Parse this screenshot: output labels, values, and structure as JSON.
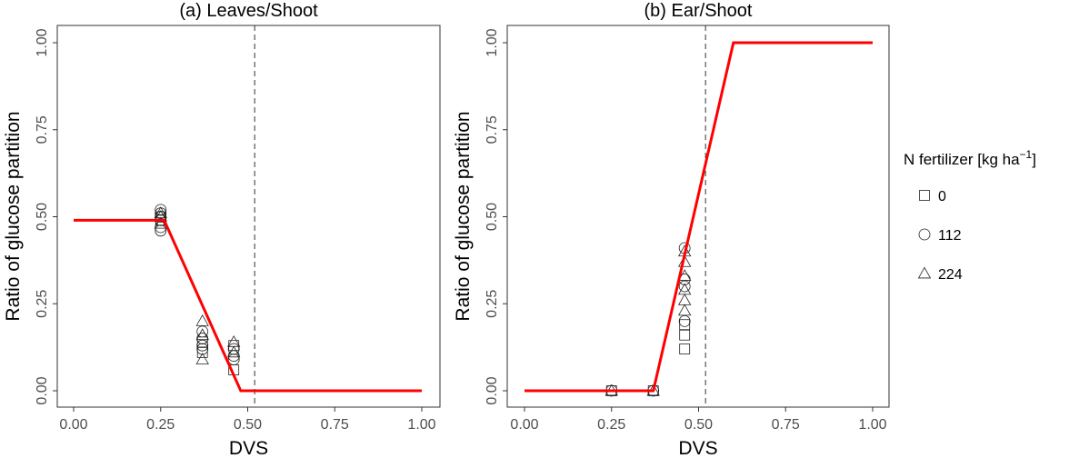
{
  "legend": {
    "title": "N fertilizer [kg ha",
    "title_sup": "−1",
    "title_end": "]",
    "items": [
      {
        "label": "0",
        "shape": "square"
      },
      {
        "label": "112",
        "shape": "circle"
      },
      {
        "label": "224",
        "shape": "triangle"
      }
    ]
  },
  "chart_data": [
    {
      "type": "scatter",
      "title": "(a) Leaves/Shoot",
      "xlabel": "DVS",
      "ylabel": "Ratio of glucose partition",
      "xlim": [
        0,
        1
      ],
      "ylim": [
        0,
        1
      ],
      "xticks": [
        "0.00",
        "0.25",
        "0.50",
        "0.75",
        "1.00"
      ],
      "yticks": [
        "0.00",
        "0.25",
        "0.50",
        "0.75",
        "1.00"
      ],
      "grid": false,
      "line_color": "#ff0000",
      "fit_line": {
        "x": [
          0,
          0.26,
          0.48,
          1.0
        ],
        "y": [
          0.49,
          0.49,
          0,
          0
        ]
      },
      "vline": 0.52,
      "series": [
        {
          "name": "0",
          "shape": "square",
          "points": [
            [
              0.25,
              0.5
            ],
            [
              0.25,
              0.49
            ],
            [
              0.37,
              0.14
            ],
            [
              0.37,
              0.11
            ],
            [
              0.46,
              0.06
            ],
            [
              0.46,
              0.13
            ]
          ]
        },
        {
          "name": "112",
          "shape": "circle",
          "points": [
            [
              0.25,
              0.52
            ],
            [
              0.25,
              0.51
            ],
            [
              0.25,
              0.5
            ],
            [
              0.25,
              0.49
            ],
            [
              0.25,
              0.47
            ],
            [
              0.25,
              0.46
            ],
            [
              0.37,
              0.17
            ],
            [
              0.37,
              0.15
            ],
            [
              0.37,
              0.13
            ],
            [
              0.37,
              0.12
            ],
            [
              0.46,
              0.12
            ],
            [
              0.46,
              0.1
            ],
            [
              0.46,
              0.09
            ]
          ]
        },
        {
          "name": "224",
          "shape": "triangle",
          "points": [
            [
              0.25,
              0.51
            ],
            [
              0.25,
              0.5
            ],
            [
              0.25,
              0.48
            ],
            [
              0.37,
              0.2
            ],
            [
              0.37,
              0.16
            ],
            [
              0.37,
              0.09
            ],
            [
              0.46,
              0.14
            ],
            [
              0.46,
              0.11
            ]
          ]
        }
      ]
    },
    {
      "type": "scatter",
      "title": "(b) Ear/Shoot",
      "xlabel": "DVS",
      "ylabel": "Ratio of glucose partition",
      "xlim": [
        0,
        1
      ],
      "ylim": [
        0,
        1
      ],
      "xticks": [
        "0.00",
        "0.25",
        "0.50",
        "0.75",
        "1.00"
      ],
      "yticks": [
        "0.00",
        "0.25",
        "0.50",
        "0.75",
        "1.00"
      ],
      "grid": false,
      "line_color": "#ff0000",
      "fit_line": {
        "x": [
          0,
          0.37,
          0.6,
          1.0
        ],
        "y": [
          0,
          0,
          1.0,
          1.0
        ]
      },
      "vline": 0.52,
      "series": [
        {
          "name": "0",
          "shape": "square",
          "points": [
            [
              0.25,
              0
            ],
            [
              0.37,
              0
            ],
            [
              0.46,
              0.12
            ],
            [
              0.46,
              0.16
            ],
            [
              0.46,
              0.19
            ]
          ]
        },
        {
          "name": "112",
          "shape": "circle",
          "points": [
            [
              0.25,
              0
            ],
            [
              0.37,
              0
            ],
            [
              0.46,
              0.2
            ],
            [
              0.46,
              0.3
            ],
            [
              0.46,
              0.32
            ],
            [
              0.46,
              0.41
            ]
          ]
        },
        {
          "name": "224",
          "shape": "triangle",
          "points": [
            [
              0.25,
              0
            ],
            [
              0.37,
              0
            ],
            [
              0.46,
              0.23
            ],
            [
              0.46,
              0.26
            ],
            [
              0.46,
              0.29
            ],
            [
              0.46,
              0.33
            ],
            [
              0.46,
              0.37
            ],
            [
              0.46,
              0.4
            ]
          ]
        }
      ]
    }
  ]
}
